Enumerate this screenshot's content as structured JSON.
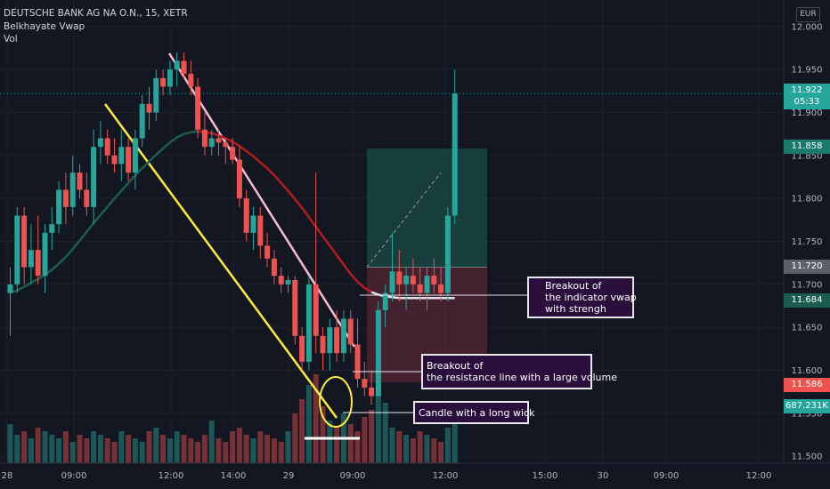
{
  "header": {
    "symbol": "DEUTSCHE BANK AG NA O.N., 15, XETR",
    "indicator": "Belkhayate Vwap",
    "volume_label": "Vol",
    "currency": "EUR"
  },
  "price_tags": {
    "last_price": "11.922",
    "countdown": "05:33",
    "target": "11.858",
    "entry": "11.720",
    "vwap": "11.684",
    "stop": "11.586",
    "volume": "687.231K"
  },
  "annotations": [
    {
      "lines": [
        "Breakout of",
        "the indicator vwap",
        "with strengh"
      ]
    },
    {
      "lines": [
        "Breakout of",
        "the resistance line with a large volume"
      ]
    },
    {
      "lines": [
        "Candle with a long wick"
      ]
    }
  ],
  "colors": {
    "background": "#131722",
    "up": "#26a69a",
    "down": "#ef5350",
    "vwap_down": "#b71c1c",
    "vwap_up": "#1b5e50",
    "support_line": "#ffeb3b",
    "resistance_line": "#f8bbd0",
    "target_zone": "#1b5e50",
    "stop_zone": "#6b2a3a",
    "annotation_bg": "#2a0f3d"
  },
  "chart_data": {
    "type": "candlestick",
    "y_axis": {
      "ticks": [
        "11.500",
        "11.550",
        "11.600",
        "11.650",
        "11.700",
        "11.750",
        "11.800",
        "11.850",
        "11.900",
        "11.950",
        "12.000"
      ],
      "ylim": [
        11.495,
        12.005
      ]
    },
    "x_axis": {
      "ticks": [
        "28",
        "09:00",
        "12:00",
        "14:00",
        "29",
        "09:00",
        "12:00",
        "15:00",
        "30",
        "09:00",
        "12:00"
      ]
    },
    "candles": [
      {
        "o": 11.69,
        "h": 11.72,
        "l": 11.64,
        "c": 11.7
      },
      {
        "o": 11.7,
        "h": 11.79,
        "l": 11.69,
        "c": 11.78
      },
      {
        "o": 11.78,
        "h": 11.79,
        "l": 11.7,
        "c": 11.72
      },
      {
        "o": 11.72,
        "h": 11.77,
        "l": 11.7,
        "c": 11.74
      },
      {
        "o": 11.74,
        "h": 11.78,
        "l": 11.7,
        "c": 11.71
      },
      {
        "o": 11.71,
        "h": 11.77,
        "l": 11.69,
        "c": 11.76
      },
      {
        "o": 11.76,
        "h": 11.79,
        "l": 11.74,
        "c": 11.77
      },
      {
        "o": 11.77,
        "h": 11.82,
        "l": 11.76,
        "c": 11.81
      },
      {
        "o": 11.81,
        "h": 11.83,
        "l": 11.77,
        "c": 11.79
      },
      {
        "o": 11.79,
        "h": 11.85,
        "l": 11.78,
        "c": 11.83
      },
      {
        "o": 11.83,
        "h": 11.84,
        "l": 11.8,
        "c": 11.81
      },
      {
        "o": 11.81,
        "h": 11.83,
        "l": 11.78,
        "c": 11.79
      },
      {
        "o": 11.79,
        "h": 11.88,
        "l": 11.77,
        "c": 11.86
      },
      {
        "o": 11.86,
        "h": 11.89,
        "l": 11.84,
        "c": 11.87
      },
      {
        "o": 11.87,
        "h": 11.88,
        "l": 11.84,
        "c": 11.85
      },
      {
        "o": 11.85,
        "h": 11.87,
        "l": 11.83,
        "c": 11.84
      },
      {
        "o": 11.84,
        "h": 11.88,
        "l": 11.82,
        "c": 11.86
      },
      {
        "o": 11.86,
        "h": 11.87,
        "l": 11.82,
        "c": 11.83
      },
      {
        "o": 11.83,
        "h": 11.88,
        "l": 11.81,
        "c": 11.87
      },
      {
        "o": 11.87,
        "h": 11.92,
        "l": 11.86,
        "c": 11.91
      },
      {
        "o": 11.91,
        "h": 11.93,
        "l": 11.88,
        "c": 11.9
      },
      {
        "o": 11.9,
        "h": 11.95,
        "l": 11.89,
        "c": 11.94
      },
      {
        "o": 11.94,
        "h": 11.95,
        "l": 11.92,
        "c": 11.93
      },
      {
        "o": 11.93,
        "h": 11.96,
        "l": 11.92,
        "c": 11.95
      },
      {
        "o": 11.95,
        "h": 11.97,
        "l": 11.93,
        "c": 11.96
      },
      {
        "o": 11.96,
        "h": 11.97,
        "l": 11.94,
        "c": 11.945
      },
      {
        "o": 11.945,
        "h": 11.96,
        "l": 11.92,
        "c": 11.93
      },
      {
        "o": 11.93,
        "h": 11.94,
        "l": 11.87,
        "c": 11.88
      },
      {
        "o": 11.88,
        "h": 11.9,
        "l": 11.85,
        "c": 11.86
      },
      {
        "o": 11.86,
        "h": 11.88,
        "l": 11.85,
        "c": 11.87
      },
      {
        "o": 11.87,
        "h": 11.88,
        "l": 11.85,
        "c": 11.865
      },
      {
        "o": 11.865,
        "h": 11.87,
        "l": 11.84,
        "c": 11.86
      },
      {
        "o": 11.86,
        "h": 11.87,
        "l": 11.84,
        "c": 11.845
      },
      {
        "o": 11.845,
        "h": 11.86,
        "l": 11.79,
        "c": 11.8
      },
      {
        "o": 11.8,
        "h": 11.81,
        "l": 11.75,
        "c": 11.76
      },
      {
        "o": 11.76,
        "h": 11.79,
        "l": 11.74,
        "c": 11.78
      },
      {
        "o": 11.78,
        "h": 11.79,
        "l": 11.73,
        "c": 11.745
      },
      {
        "o": 11.745,
        "h": 11.76,
        "l": 11.72,
        "c": 11.73
      },
      {
        "o": 11.73,
        "h": 11.74,
        "l": 11.7,
        "c": 11.71
      },
      {
        "o": 11.71,
        "h": 11.72,
        "l": 11.69,
        "c": 11.7
      },
      {
        "o": 11.7,
        "h": 11.71,
        "l": 11.69,
        "c": 11.705
      },
      {
        "o": 11.705,
        "h": 11.71,
        "l": 11.63,
        "c": 11.64
      },
      {
        "o": 11.64,
        "h": 11.65,
        "l": 11.6,
        "c": 11.61
      },
      {
        "o": 11.61,
        "h": 11.71,
        "l": 11.6,
        "c": 11.7
      },
      {
        "o": 11.7,
        "h": 11.83,
        "l": 11.62,
        "c": 11.64
      },
      {
        "o": 11.64,
        "h": 11.65,
        "l": 11.6,
        "c": 11.62
      },
      {
        "o": 11.62,
        "h": 11.66,
        "l": 11.6,
        "c": 11.65
      },
      {
        "o": 11.65,
        "h": 11.67,
        "l": 11.61,
        "c": 11.62
      },
      {
        "o": 11.62,
        "h": 11.67,
        "l": 11.61,
        "c": 11.66
      },
      {
        "o": 11.66,
        "h": 11.67,
        "l": 11.62,
        "c": 11.63
      },
      {
        "o": 11.63,
        "h": 11.66,
        "l": 11.58,
        "c": 11.59
      },
      {
        "o": 11.59,
        "h": 11.61,
        "l": 11.57,
        "c": 11.58
      },
      {
        "o": 11.58,
        "h": 11.6,
        "l": 11.56,
        "c": 11.57
      },
      {
        "o": 11.57,
        "h": 11.68,
        "l": 11.57,
        "c": 11.67
      },
      {
        "o": 11.67,
        "h": 11.7,
        "l": 11.65,
        "c": 11.69
      },
      {
        "o": 11.69,
        "h": 11.76,
        "l": 11.68,
        "c": 11.715
      },
      {
        "o": 11.715,
        "h": 11.74,
        "l": 11.68,
        "c": 11.7
      },
      {
        "o": 11.7,
        "h": 11.72,
        "l": 11.67,
        "c": 11.71
      },
      {
        "o": 11.71,
        "h": 11.73,
        "l": 11.69,
        "c": 11.7
      },
      {
        "o": 11.7,
        "h": 11.72,
        "l": 11.68,
        "c": 11.69
      },
      {
        "o": 11.69,
        "h": 11.72,
        "l": 11.67,
        "c": 11.71
      },
      {
        "o": 11.71,
        "h": 11.73,
        "l": 11.69,
        "c": 11.7
      },
      {
        "o": 11.7,
        "h": 11.72,
        "l": 11.68,
        "c": 11.69
      },
      {
        "o": 11.69,
        "h": 11.79,
        "l": 11.68,
        "c": 11.78
      },
      {
        "o": 11.78,
        "h": 11.95,
        "l": 11.77,
        "c": 11.922
      }
    ],
    "volumes": [
      11,
      8,
      9,
      7,
      10,
      9,
      8,
      7,
      9,
      6,
      8,
      7,
      9,
      8,
      7,
      6,
      9,
      8,
      7,
      6,
      9,
      10,
      8,
      7,
      9,
      8,
      7,
      6,
      8,
      12,
      7,
      6,
      9,
      10,
      8,
      7,
      9,
      8,
      7,
      6,
      9,
      14,
      18,
      22,
      25,
      16,
      12,
      10,
      14,
      11,
      9,
      13,
      15,
      20,
      17,
      10,
      9,
      8,
      7,
      9,
      8,
      7,
      6,
      10,
      15
    ],
    "vwap": [
      11.69,
      11.693,
      11.697,
      11.702,
      11.706,
      11.711,
      11.717,
      11.724,
      11.732,
      11.741,
      11.751,
      11.761,
      11.771,
      11.781,
      11.79,
      11.8,
      11.809,
      11.818,
      11.827,
      11.835,
      11.843,
      11.851,
      11.858,
      11.865,
      11.871,
      11.875,
      11.877,
      11.878,
      11.877,
      11.876,
      11.873,
      11.87,
      11.866,
      11.861,
      11.855,
      11.849,
      11.842,
      11.835,
      11.827,
      11.818,
      11.809,
      11.799,
      11.789,
      11.778,
      11.767,
      11.756,
      11.745,
      11.734,
      11.723,
      11.712,
      11.703,
      11.696,
      11.691,
      11.688,
      11.686,
      11.685,
      11.684,
      11.684,
      11.684,
      11.684,
      11.684,
      11.684,
      11.684,
      11.684,
      11.684
    ]
  }
}
